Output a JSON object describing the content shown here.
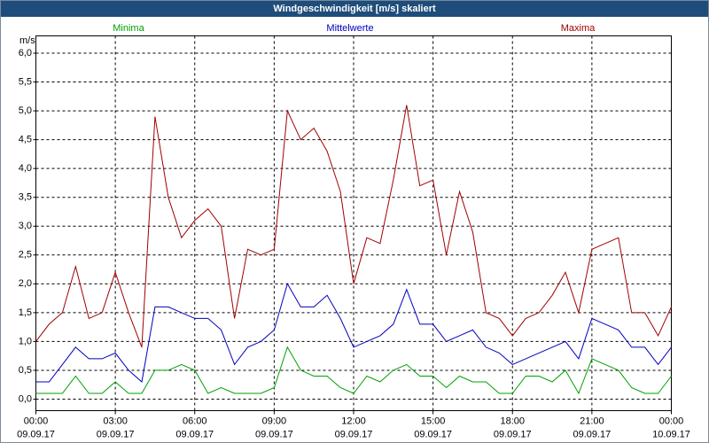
{
  "chart_data": {
    "type": "line",
    "title": "Windgeschwindigkeit [m/s] skaliert",
    "y_unit": "m/s",
    "grid": true,
    "x": [
      0,
      0.5,
      1,
      1.5,
      2,
      2.5,
      3,
      3.5,
      4,
      4.5,
      5,
      5.5,
      6,
      6.5,
      7,
      7.5,
      8,
      8.5,
      9,
      9.5,
      10,
      10.5,
      11,
      11.5,
      12,
      12.5,
      13,
      13.5,
      14,
      14.5,
      15,
      15.5,
      16,
      16.5,
      17,
      17.5,
      18,
      18.5,
      19,
      19.5,
      20,
      20.5,
      21,
      21.5,
      22,
      22.5,
      23,
      23.5,
      24
    ],
    "series": [
      {
        "name": "Minima",
        "color": "#00a000",
        "values": [
          0.1,
          0.1,
          0.1,
          0.4,
          0.1,
          0.1,
          0.3,
          0.1,
          0.1,
          0.5,
          0.5,
          0.6,
          0.5,
          0.1,
          0.2,
          0.1,
          0.1,
          0.1,
          0.2,
          0.9,
          0.5,
          0.4,
          0.4,
          0.2,
          0.1,
          0.4,
          0.3,
          0.5,
          0.6,
          0.4,
          0.4,
          0.2,
          0.4,
          0.3,
          0.3,
          0.1,
          0.1,
          0.4,
          0.4,
          0.3,
          0.5,
          0.1,
          0.7,
          0.6,
          0.5,
          0.2,
          0.1,
          0.1,
          0.4
        ]
      },
      {
        "name": "Mittelwerte",
        "color": "#0000c0",
        "values": [
          0.3,
          0.3,
          0.6,
          0.9,
          0.7,
          0.7,
          0.8,
          0.5,
          0.3,
          1.6,
          1.6,
          1.5,
          1.4,
          1.4,
          1.2,
          0.6,
          0.9,
          1.0,
          1.2,
          2.0,
          1.6,
          1.6,
          1.8,
          1.4,
          0.9,
          1.0,
          1.1,
          1.3,
          1.9,
          1.3,
          1.3,
          1.0,
          1.1,
          1.2,
          0.9,
          0.8,
          0.6,
          0.7,
          0.8,
          0.9,
          1.0,
          0.7,
          1.4,
          1.3,
          1.2,
          0.9,
          0.9,
          0.6,
          0.9
        ]
      },
      {
        "name": "Maxima",
        "color": "#a00000",
        "values": [
          1.0,
          1.3,
          1.5,
          2.3,
          1.4,
          1.5,
          2.2,
          1.5,
          0.9,
          4.9,
          3.5,
          2.8,
          3.1,
          3.3,
          3.0,
          1.4,
          2.6,
          2.5,
          2.6,
          5.0,
          4.5,
          4.7,
          4.3,
          3.6,
          2.0,
          2.8,
          2.7,
          3.8,
          5.1,
          3.7,
          3.8,
          2.5,
          3.6,
          2.9,
          1.5,
          1.4,
          1.1,
          1.4,
          1.5,
          1.8,
          2.2,
          1.5,
          2.6,
          2.7,
          2.8,
          1.5,
          1.5,
          1.1,
          1.6
        ]
      }
    ],
    "xlim": [
      0,
      24
    ],
    "xticks": [
      {
        "value": 0,
        "label": "00:00"
      },
      {
        "value": 3,
        "label": "03:00"
      },
      {
        "value": 6,
        "label": "06:00"
      },
      {
        "value": 9,
        "label": "09:00"
      },
      {
        "value": 12,
        "label": "12:00"
      },
      {
        "value": 15,
        "label": "15:00"
      },
      {
        "value": 18,
        "label": "18:00"
      },
      {
        "value": 21,
        "label": "21:00"
      },
      {
        "value": 24,
        "label": "00:00"
      }
    ],
    "xtick_dates": [
      "09.09.17",
      "09.09.17",
      "09.09.17",
      "09.09.17",
      "09.09.17",
      "09.09.17",
      "09.09.17",
      "09.09.17",
      "10.09.17"
    ],
    "ylim": [
      -0.2,
      6.3
    ],
    "yticks": [
      {
        "value": 0,
        "label": "0,0"
      },
      {
        "value": 0.5,
        "label": "0,5"
      },
      {
        "value": 1,
        "label": "1,0"
      },
      {
        "value": 1.5,
        "label": "1,5"
      },
      {
        "value": 2,
        "label": "2,0"
      },
      {
        "value": 2.5,
        "label": "2,5"
      },
      {
        "value": 3,
        "label": "3,0"
      },
      {
        "value": 3.5,
        "label": "3,5"
      },
      {
        "value": 4,
        "label": "4,0"
      },
      {
        "value": 4.5,
        "label": "4,5"
      },
      {
        "value": 5,
        "label": "5,0"
      },
      {
        "value": 5.5,
        "label": "5,5"
      },
      {
        "value": 6,
        "label": "6,0"
      }
    ]
  }
}
